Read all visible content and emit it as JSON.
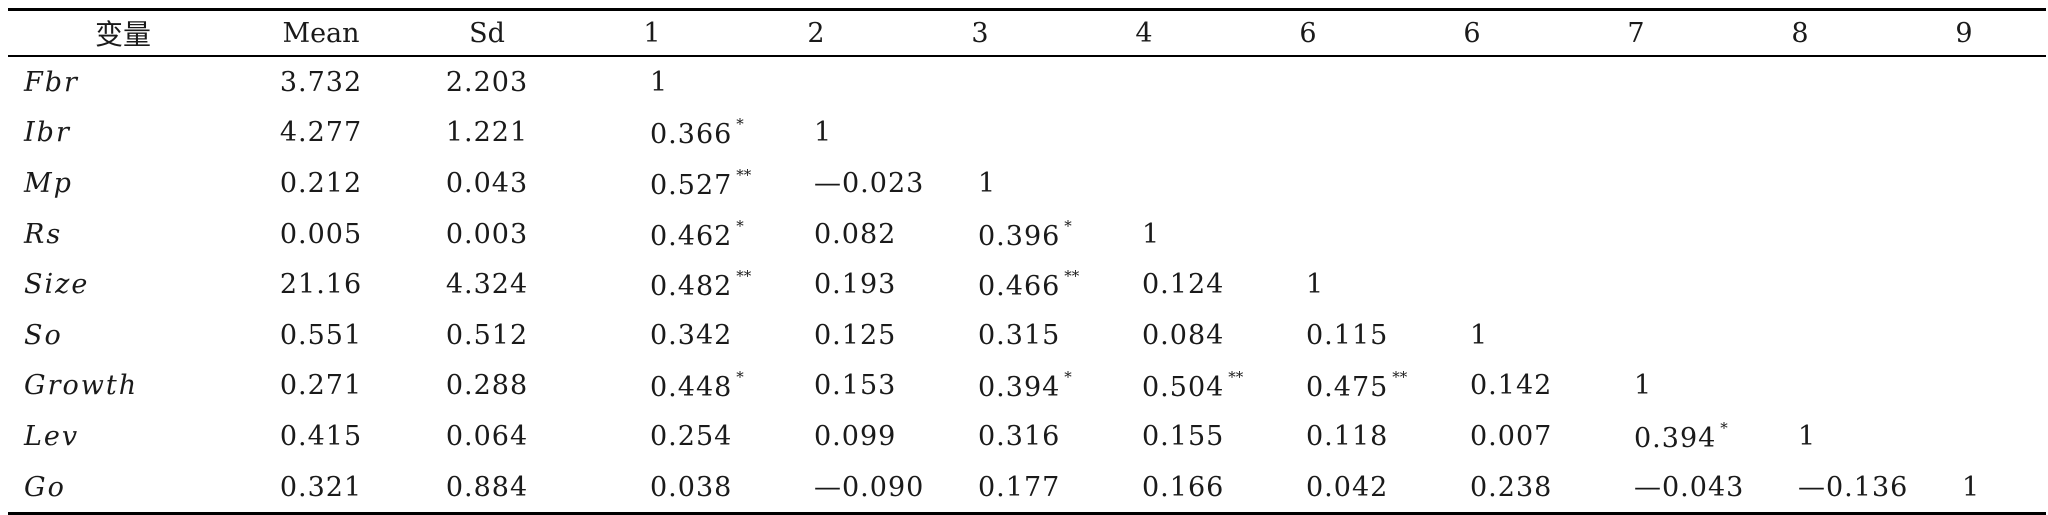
{
  "headers": [
    "变量",
    "Mean",
    "Sd",
    "1",
    "2",
    "3",
    "4",
    "6",
    "6",
    "7",
    "8",
    "9"
  ],
  "rows": [
    {
      "name": "Fbr",
      "mean": "3.732",
      "sd": "2.203",
      "cells": [
        {
          "v": "1",
          "s": ""
        }
      ]
    },
    {
      "name": "Ibr",
      "mean": "4.277",
      "sd": "1.221",
      "cells": [
        {
          "v": "0.366",
          "s": "*"
        },
        {
          "v": "1",
          "s": ""
        }
      ]
    },
    {
      "name": "Mp",
      "mean": "0.212",
      "sd": "0.043",
      "cells": [
        {
          "v": "0.527",
          "s": "**"
        },
        {
          "v": "—0.023",
          "s": ""
        },
        {
          "v": "1",
          "s": ""
        }
      ]
    },
    {
      "name": "Rs",
      "mean": "0.005",
      "sd": "0.003",
      "cells": [
        {
          "v": "0.462",
          "s": "*"
        },
        {
          "v": "0.082",
          "s": ""
        },
        {
          "v": "0.396",
          "s": "*"
        },
        {
          "v": "1",
          "s": ""
        }
      ]
    },
    {
      "name": "Size",
      "mean": "21.16",
      "sd": "4.324",
      "cells": [
        {
          "v": "0.482",
          "s": "**"
        },
        {
          "v": "0.193",
          "s": ""
        },
        {
          "v": "0.466",
          "s": "**"
        },
        {
          "v": "0.124",
          "s": ""
        },
        {
          "v": "1",
          "s": ""
        }
      ]
    },
    {
      "name": "So",
      "mean": "0.551",
      "sd": "0.512",
      "cells": [
        {
          "v": "0.342",
          "s": ""
        },
        {
          "v": "0.125",
          "s": ""
        },
        {
          "v": "0.315",
          "s": ""
        },
        {
          "v": "0.084",
          "s": ""
        },
        {
          "v": "0.115",
          "s": ""
        },
        {
          "v": "1",
          "s": ""
        }
      ]
    },
    {
      "name": "Growth",
      "mean": "0.271",
      "sd": "0.288",
      "cells": [
        {
          "v": "0.448",
          "s": "*"
        },
        {
          "v": "0.153",
          "s": ""
        },
        {
          "v": "0.394",
          "s": "*"
        },
        {
          "v": "0.504",
          "s": "**"
        },
        {
          "v": "0.475",
          "s": "**"
        },
        {
          "v": "0.142",
          "s": ""
        },
        {
          "v": "1",
          "s": ""
        }
      ]
    },
    {
      "name": "Lev",
      "mean": "0.415",
      "sd": "0.064",
      "cells": [
        {
          "v": "0.254",
          "s": ""
        },
        {
          "v": "0.099",
          "s": ""
        },
        {
          "v": "0.316",
          "s": ""
        },
        {
          "v": "0.155",
          "s": ""
        },
        {
          "v": "0.118",
          "s": ""
        },
        {
          "v": "0.007",
          "s": ""
        },
        {
          "v": "0.394",
          "s": "*"
        },
        {
          "v": "1",
          "s": ""
        }
      ]
    },
    {
      "name": "Go",
      "mean": "0.321",
      "sd": "0.884",
      "cells": [
        {
          "v": "0.038",
          "s": ""
        },
        {
          "v": "—0.090",
          "s": ""
        },
        {
          "v": "0.177",
          "s": ""
        },
        {
          "v": "0.166",
          "s": ""
        },
        {
          "v": "0.042",
          "s": ""
        },
        {
          "v": "0.238",
          "s": ""
        },
        {
          "v": "—0.043",
          "s": ""
        },
        {
          "v": "—0.136",
          "s": ""
        },
        {
          "v": "1",
          "s": ""
        }
      ]
    }
  ]
}
